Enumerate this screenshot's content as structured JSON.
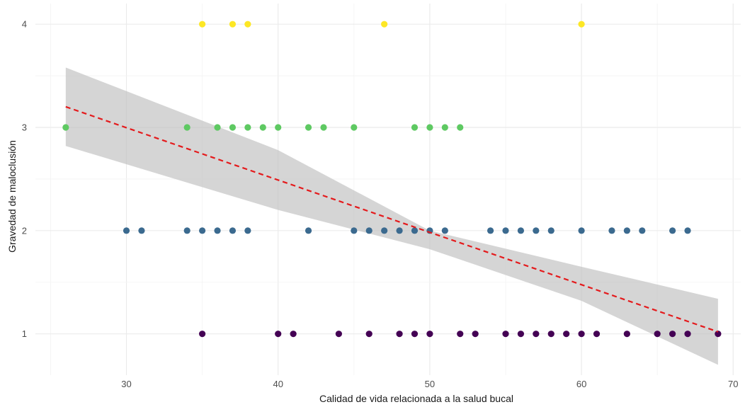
{
  "chart_data": {
    "type": "scatter",
    "xlabel": "Calidad de vida relacionada a la salud bucal",
    "ylabel": "Gravedad de maloclusión",
    "xlim": [
      24,
      70.5
    ],
    "ylim": [
      0.6,
      4.2
    ],
    "x_ticks": [
      30,
      40,
      50,
      60,
      70
    ],
    "y_ticks": [
      1,
      2,
      3,
      4
    ],
    "grid": true,
    "legend": "none",
    "groups": [
      {
        "y": 4,
        "color": "#fde725",
        "x": [
          35,
          37,
          38,
          47,
          60
        ]
      },
      {
        "y": 3,
        "color": "#5ec962",
        "x": [
          26,
          34,
          36,
          37,
          38,
          39,
          40,
          42,
          43,
          45,
          49,
          50,
          51,
          52
        ]
      },
      {
        "y": 2,
        "color": "#3b6a8f",
        "x": [
          30,
          31,
          34,
          35,
          36,
          37,
          38,
          42,
          45,
          46,
          47,
          48,
          49,
          50,
          51,
          54,
          55,
          56,
          57,
          58,
          60,
          62,
          63,
          64,
          66,
          67
        ]
      },
      {
        "y": 1,
        "color": "#440154",
        "x": [
          35,
          40,
          41,
          44,
          46,
          48,
          49,
          50,
          52,
          53,
          55,
          56,
          57,
          58,
          59,
          60,
          61,
          63,
          65,
          66,
          67,
          69
        ]
      }
    ],
    "regression": {
      "type": "linear",
      "color": "#e41a1c",
      "line_style": "dashed",
      "x_range": [
        26,
        69
      ],
      "y_start": 3.2,
      "y_end": 1.02,
      "confidence_band": {
        "color": "#bebebe",
        "lower": [
          [
            26,
            2.82
          ],
          [
            40,
            2.2
          ],
          [
            50,
            1.82
          ],
          [
            60,
            1.32
          ],
          [
            69,
            0.7
          ]
        ],
        "upper": [
          [
            26,
            3.58
          ],
          [
            40,
            2.78
          ],
          [
            50,
            2.0
          ],
          [
            60,
            1.65
          ],
          [
            69,
            1.34
          ]
        ]
      }
    }
  }
}
